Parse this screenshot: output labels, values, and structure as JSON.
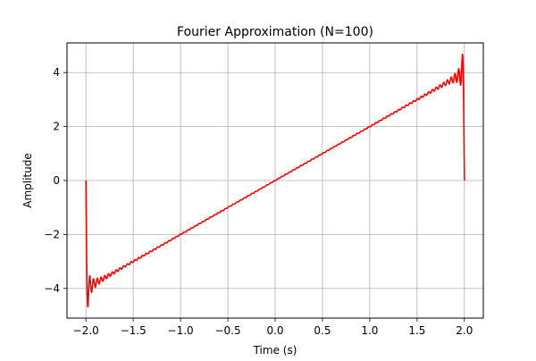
{
  "chart_data": {
    "type": "line",
    "title": "Fourier Approximation (N=100)",
    "xlabel": "Time (s)",
    "ylabel": "Amplitude",
    "xlim": [
      -2.2,
      2.2
    ],
    "ylim": [
      -5.1,
      5.1
    ],
    "x_ticks": [
      -2.0,
      -1.5,
      -1.0,
      -0.5,
      0.0,
      0.5,
      1.0,
      1.5,
      2.0
    ],
    "x_tick_labels": [
      "−2.0",
      "−1.5",
      "−1.0",
      "−0.5",
      "0.0",
      "0.5",
      "1.0",
      "1.5",
      "2.0"
    ],
    "y_ticks": [
      -4,
      -2,
      0,
      2,
      4
    ],
    "y_tick_labels": [
      "−4",
      "−2",
      "0",
      "2",
      "4"
    ],
    "grid": true,
    "legend": "none",
    "series": [
      {
        "color": "#ff0000",
        "function": "fourier_series_sawtooth",
        "period": 4,
        "amplitude_half_range": 4,
        "harmonics": 100,
        "x_range": [
          -2.0,
          2.0
        ]
      }
    ]
  }
}
